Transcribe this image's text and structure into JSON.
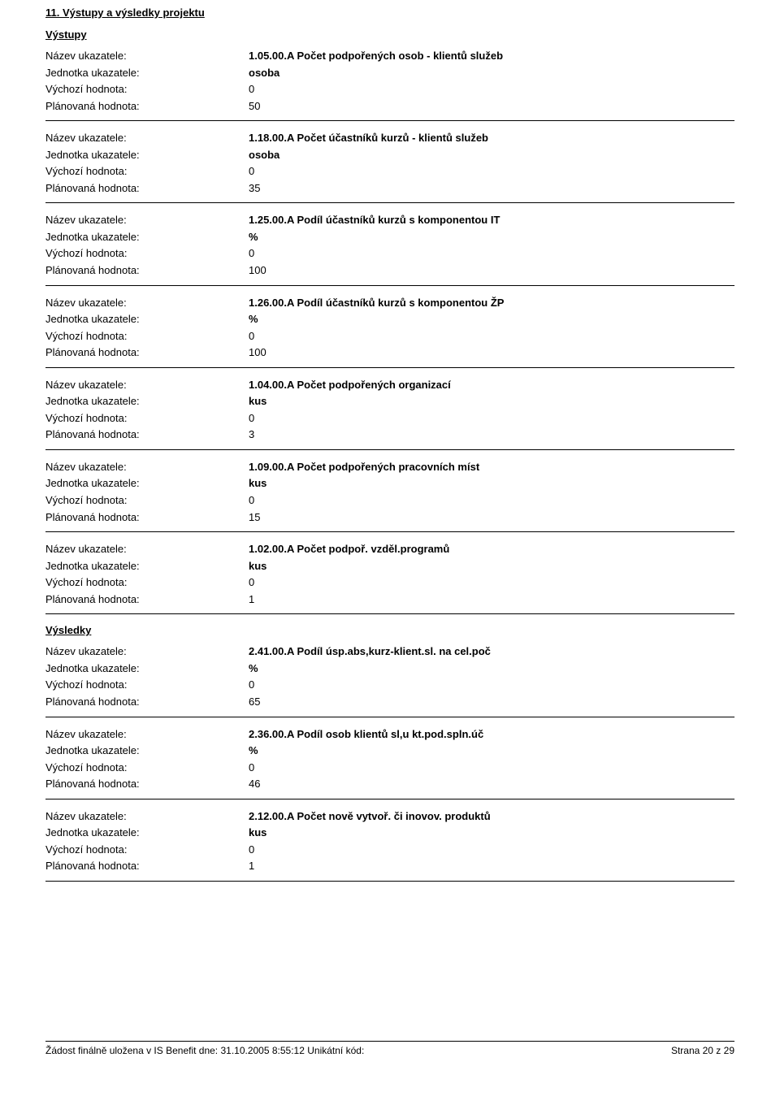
{
  "section_title": "11. Výstupy a výsledky projektu",
  "labels": {
    "nazev": "Název ukazatele:",
    "jednotka": "Jednotka ukazatele:",
    "vychozi": "Výchozí hodnota:",
    "planovana": "Plánovaná hodnota:"
  },
  "vystupy_title": "Výstupy",
  "vysledky_title": "Výsledky",
  "vystupy": [
    {
      "nazev": "1.05.00.A Počet podpořených osob - klientů služeb",
      "jednotka": "osoba",
      "vychozi": "0",
      "planovana": "50"
    },
    {
      "nazev": "1.18.00.A Počet účastníků kurzů - klientů služeb",
      "jednotka": "osoba",
      "vychozi": "0",
      "planovana": "35"
    },
    {
      "nazev": "1.25.00.A Podíl účastníků kurzů s komponentou IT",
      "jednotka": "%",
      "vychozi": "0",
      "planovana": "100"
    },
    {
      "nazev": "1.26.00.A Podíl účastníků kurzů s komponentou ŽP",
      "jednotka": "%",
      "vychozi": "0",
      "planovana": "100"
    },
    {
      "nazev": "1.04.00.A Počet podpořených organizací",
      "jednotka": "kus",
      "vychozi": "0",
      "planovana": "3"
    },
    {
      "nazev": "1.09.00.A Počet podpořených pracovních míst",
      "jednotka": "kus",
      "vychozi": "0",
      "planovana": "15"
    },
    {
      "nazev": "1.02.00.A Počet podpoř. vzděl.programů",
      "jednotka": "kus",
      "vychozi": "0",
      "planovana": "1"
    }
  ],
  "vysledky": [
    {
      "nazev": "2.41.00.A Podíl úsp.abs,kurz-klient.sl. na cel.poč",
      "jednotka": "%",
      "vychozi": "0",
      "planovana": "65"
    },
    {
      "nazev": "2.36.00.A Podíl osob klientů sl,u kt.pod.spln.úč",
      "jednotka": "%",
      "vychozi": "0",
      "planovana": "46"
    },
    {
      "nazev": "2.12.00.A Počet nově vytvoř. či inovov. produktů",
      "jednotka": "kus",
      "vychozi": "0",
      "planovana": "1"
    }
  ],
  "footer": {
    "left": "Žádost finálně uložena v IS Benefit dne: 31.10.2005 8:55:12  Unikátní kód:",
    "right": "Strana 20 z 29"
  }
}
